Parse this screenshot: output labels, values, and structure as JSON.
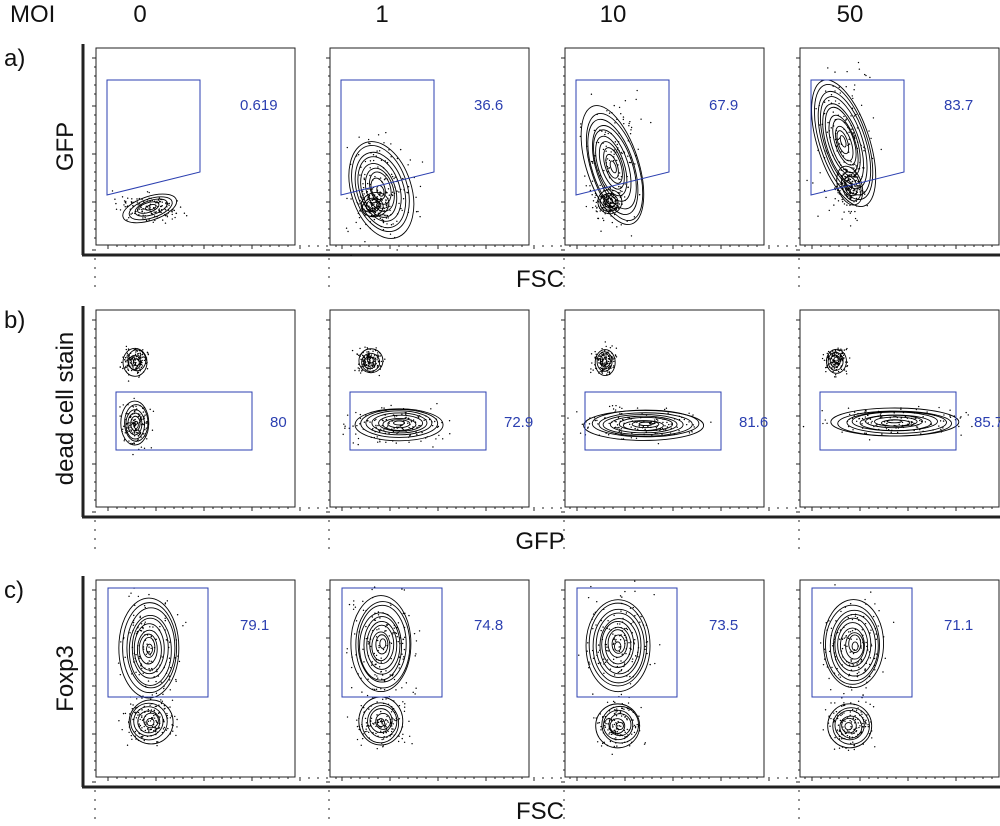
{
  "header": {
    "label": "MOI",
    "columns": [
      "0",
      "1",
      "10",
      "50"
    ]
  },
  "rows": [
    {
      "label": "a)",
      "y_axis": "GFP",
      "x_axis": "FSC",
      "gates": [
        "0.619",
        "36.6",
        "67.9",
        "83.7"
      ]
    },
    {
      "label": "b)",
      "y_axis": "dead cell stain",
      "x_axis": "GFP",
      "gates": [
        "80",
        "72.9",
        "81.6",
        "85.7"
      ]
    },
    {
      "label": "c)",
      "y_axis": "Foxp3",
      "x_axis": "FSC",
      "gates": [
        "79.1",
        "74.8",
        "73.5",
        "71.1"
      ]
    }
  ]
}
